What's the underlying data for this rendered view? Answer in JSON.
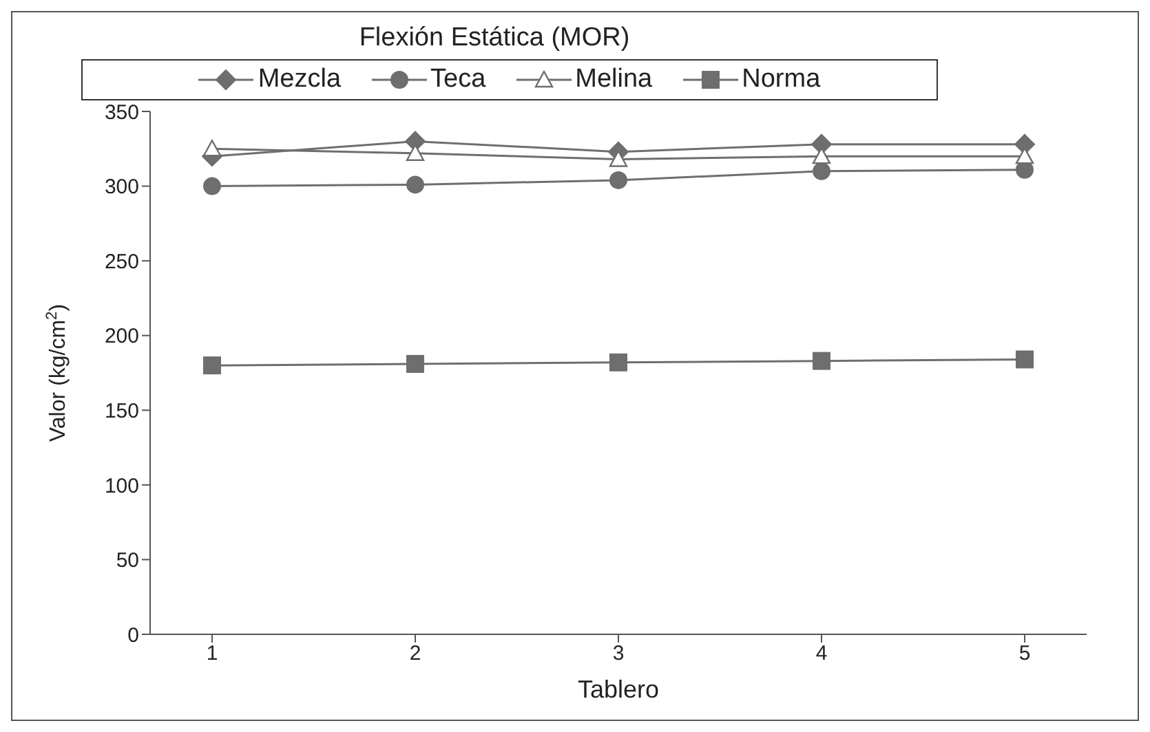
{
  "chart_data": {
    "type": "line",
    "title": "Flexión Estática (MOR)",
    "xlabel": "Tablero",
    "ylabel": "Valor (kg/cm$^{2}$)",
    "categories": [
      "1",
      "2",
      "3",
      "4",
      "5"
    ],
    "series": [
      {
        "name": "Mezcla",
        "color": "#6e6e6e",
        "marker": "diamond",
        "values": [
          320,
          330,
          323,
          328,
          328
        ]
      },
      {
        "name": "Teca",
        "color": "#6e6e6e",
        "marker": "circle",
        "values": [
          300,
          301,
          304,
          310,
          311
        ]
      },
      {
        "name": "Melina",
        "color": "#6e6e6e",
        "marker": "triangle",
        "values": [
          325,
          322,
          318,
          320,
          320
        ]
      },
      {
        "name": "Norma",
        "color": "#6e6e6e",
        "marker": "square",
        "values": [
          180,
          181,
          182,
          183,
          184
        ]
      }
    ],
    "ylim": [
      0,
      350
    ],
    "yticks": [
      0,
      50,
      100,
      150,
      200,
      250,
      300,
      350
    ],
    "grid": false,
    "legend": "top",
    "line_style": "solid"
  }
}
